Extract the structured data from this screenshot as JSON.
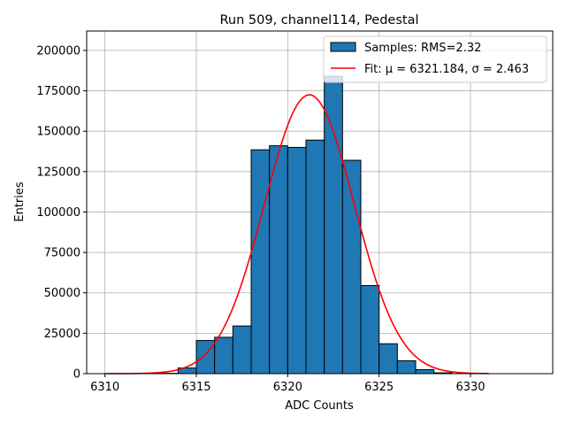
{
  "chart_data": {
    "type": "bar",
    "title": "Run 509, channel114, Pedestal",
    "xlabel": "ADC Counts",
    "ylabel": "Entries",
    "xlim": [
      6309.0,
      6334.5
    ],
    "ylim": [
      0,
      212000
    ],
    "xticks": [
      6310,
      6315,
      6320,
      6325,
      6330
    ],
    "yticks": [
      0,
      25000,
      50000,
      75000,
      100000,
      125000,
      150000,
      175000,
      200000
    ],
    "grid": true,
    "legend_position": "top-right",
    "bar_color": "#1f77b4",
    "fit_color": "#ff0000",
    "bin_width": 1,
    "bins": [
      {
        "left": 6313,
        "value": 200
      },
      {
        "left": 6314,
        "value": 3500
      },
      {
        "left": 6315,
        "value": 20500
      },
      {
        "left": 6316,
        "value": 22500
      },
      {
        "left": 6317,
        "value": 29500
      },
      {
        "left": 6318,
        "value": 138500
      },
      {
        "left": 6319,
        "value": 141000
      },
      {
        "left": 6320,
        "value": 140000
      },
      {
        "left": 6321,
        "value": 144500
      },
      {
        "left": 6322,
        "value": 184000
      },
      {
        "left": 6323,
        "value": 132000
      },
      {
        "left": 6324,
        "value": 54500
      },
      {
        "left": 6325,
        "value": 18500
      },
      {
        "left": 6326,
        "value": 8000
      },
      {
        "left": 6327,
        "value": 2500
      },
      {
        "left": 6328,
        "value": 500
      }
    ],
    "fit": {
      "mu": 6321.184,
      "sigma": 2.463,
      "amplitude": 172500,
      "x_range": [
        6310,
        6331
      ]
    },
    "series": [
      {
        "name": "Samples: RMS=2.32",
        "kind": "histogram"
      },
      {
        "name": "Fit: μ = 6321.184, σ = 2.463",
        "kind": "line"
      }
    ]
  }
}
